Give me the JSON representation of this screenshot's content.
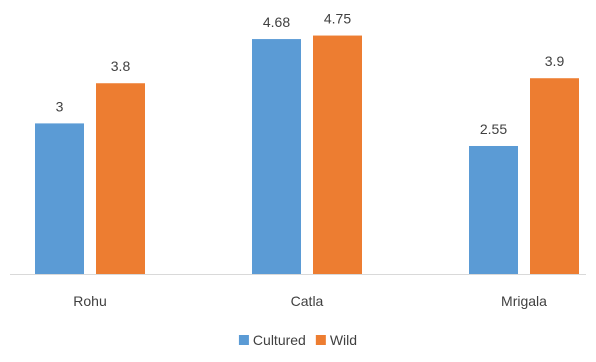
{
  "chart_data": {
    "type": "bar",
    "categories": [
      "Rohu",
      "Catla",
      "Mrigala"
    ],
    "series": [
      {
        "name": "Cultured",
        "color": "#5B9BD5",
        "values": [
          3,
          4.68,
          2.55
        ],
        "labels": [
          "3",
          "4.68",
          "2.55"
        ]
      },
      {
        "name": "Wild",
        "color": "#ED7D31",
        "values": [
          3.8,
          4.75,
          3.9
        ],
        "labels": [
          "3.8",
          "4.75",
          "3.9"
        ]
      }
    ],
    "title": "",
    "xlabel": "",
    "ylabel": "",
    "ylim": [
      0,
      5.0
    ],
    "grid": false,
    "y_axis_visible": false,
    "legend_position": "bottom",
    "axis_color": "#D9D9D9"
  }
}
